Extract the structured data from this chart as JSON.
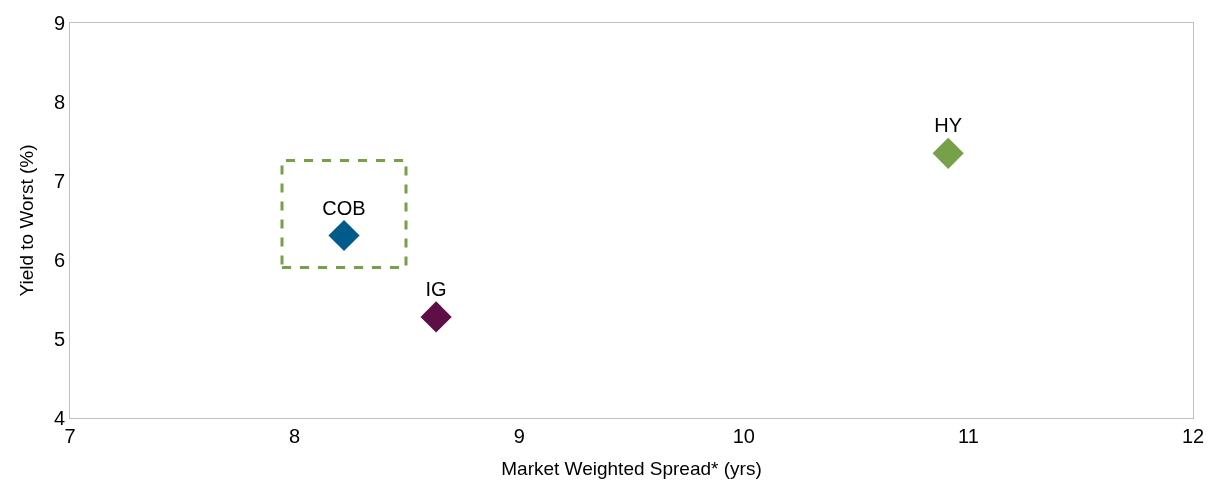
{
  "chart_data": {
    "type": "scatter",
    "xlabel": "Market Weighted Spread* (yrs)",
    "ylabel": "Yield to Worst (%)",
    "xlim": [
      7,
      12
    ],
    "xticks": [
      7,
      8,
      9,
      10,
      11,
      12
    ],
    "ylim": [
      4,
      9
    ],
    "yticks": [
      4,
      5,
      6,
      7,
      8,
      9
    ],
    "legend": false,
    "marker": "diamond",
    "series": [
      {
        "name": "COB",
        "color": "#005b8a",
        "x": [
          8.22
        ],
        "values": [
          6.31
        ]
      },
      {
        "name": "IG",
        "color": "#5e1046",
        "x": [
          8.63
        ],
        "values": [
          5.28
        ]
      },
      {
        "name": "HY",
        "color": "#77a04b",
        "x": [
          10.91
        ],
        "values": [
          7.35
        ]
      }
    ]
  }
}
